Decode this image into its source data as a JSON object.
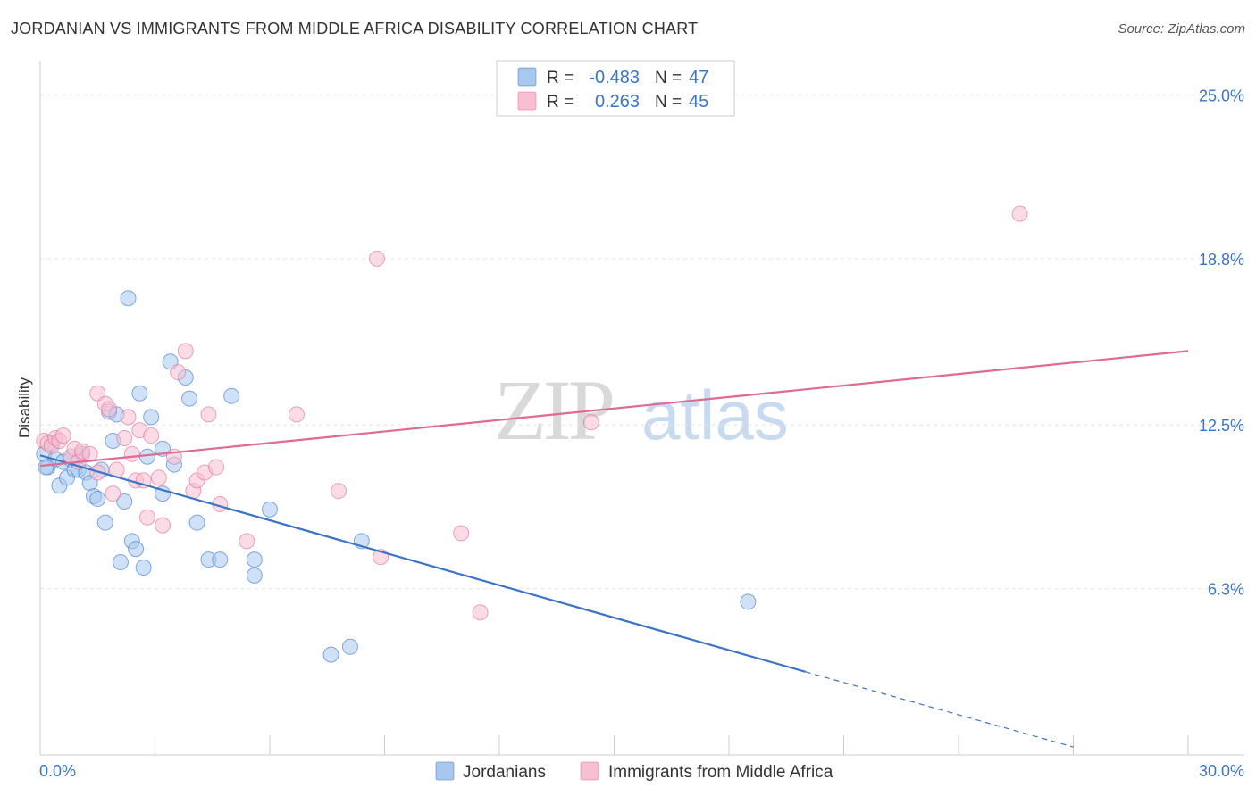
{
  "chart_data": {
    "type": "scatter",
    "title": "JORDANIAN VS IMMIGRANTS FROM MIDDLE AFRICA DISABILITY CORRELATION CHART",
    "source": "Source: ZipAtlas.com",
    "xlabel": "",
    "ylabel": "Disability",
    "xlim": [
      0,
      30
    ],
    "ylim": [
      0,
      26.3
    ],
    "x_tick_labels": [
      "0.0%",
      "30.0%"
    ],
    "y_ticks": [
      6.3,
      12.5,
      18.8,
      25.0
    ],
    "y_tick_labels": [
      "6.3%",
      "12.5%",
      "18.8%",
      "25.0%"
    ],
    "grid": true,
    "legend_position": "top-center",
    "watermark": "ZIPatlas",
    "series": [
      {
        "name": "Jordanians",
        "color": "#3b74c4",
        "fill": "#a8c8f0",
        "legend_r_label": "R =",
        "legend_r_value": "-0.483",
        "legend_n_label": "N =",
        "legend_n_value": "47",
        "trend": {
          "x0": 0.0,
          "y0": 11.35,
          "x1": 20.0,
          "y1": 3.15,
          "dash_x1": 27.0,
          "dash_y1": 0.3
        },
        "points": [
          [
            0.1,
            11.4
          ],
          [
            0.2,
            10.9
          ],
          [
            0.3,
            11.8
          ],
          [
            0.4,
            11.2
          ],
          [
            0.5,
            10.2
          ],
          [
            0.6,
            11.1
          ],
          [
            0.7,
            10.5
          ],
          [
            0.8,
            11.2
          ],
          [
            0.9,
            10.8
          ],
          [
            1.0,
            10.8
          ],
          [
            1.1,
            11.4
          ],
          [
            1.2,
            10.7
          ],
          [
            1.3,
            10.3
          ],
          [
            1.4,
            9.8
          ],
          [
            1.5,
            9.7
          ],
          [
            1.6,
            10.8
          ],
          [
            1.7,
            8.8
          ],
          [
            1.8,
            13.0
          ],
          [
            1.9,
            11.9
          ],
          [
            2.0,
            12.9
          ],
          [
            2.1,
            7.3
          ],
          [
            2.2,
            9.6
          ],
          [
            2.3,
            17.3
          ],
          [
            2.4,
            8.1
          ],
          [
            2.5,
            7.8
          ],
          [
            2.6,
            13.7
          ],
          [
            2.7,
            7.1
          ],
          [
            2.8,
            11.3
          ],
          [
            2.9,
            12.8
          ],
          [
            3.2,
            11.6
          ],
          [
            3.2,
            9.9
          ],
          [
            3.4,
            14.9
          ],
          [
            3.5,
            11.0
          ],
          [
            3.8,
            14.3
          ],
          [
            3.9,
            13.5
          ],
          [
            4.1,
            8.8
          ],
          [
            4.4,
            7.4
          ],
          [
            4.7,
            7.4
          ],
          [
            5.0,
            13.6
          ],
          [
            5.6,
            6.8
          ],
          [
            5.6,
            7.4
          ],
          [
            6.0,
            9.3
          ],
          [
            7.6,
            3.8
          ],
          [
            8.1,
            4.1
          ],
          [
            8.4,
            8.1
          ],
          [
            18.5,
            5.8
          ],
          [
            0.15,
            10.9
          ]
        ]
      },
      {
        "name": "Immigrants from Middle Africa",
        "color": "#e06a93",
        "fill": "#f7bfd1",
        "legend_r_label": "R =",
        "legend_r_value": "0.263",
        "legend_n_label": "N =",
        "legend_n_value": "45",
        "trend": {
          "x0": 0.0,
          "y0": 10.95,
          "x1": 30.0,
          "y1": 15.3
        },
        "points": [
          [
            0.1,
            11.9
          ],
          [
            0.2,
            11.8
          ],
          [
            0.3,
            11.7
          ],
          [
            0.4,
            12.0
          ],
          [
            0.5,
            11.9
          ],
          [
            0.6,
            12.1
          ],
          [
            0.8,
            11.3
          ],
          [
            0.9,
            11.6
          ],
          [
            1.0,
            11.1
          ],
          [
            1.1,
            11.5
          ],
          [
            1.3,
            11.4
          ],
          [
            1.5,
            10.7
          ],
          [
            1.5,
            13.7
          ],
          [
            1.7,
            13.3
          ],
          [
            1.8,
            13.1
          ],
          [
            1.9,
            9.9
          ],
          [
            2.0,
            10.8
          ],
          [
            2.2,
            12.0
          ],
          [
            2.3,
            12.8
          ],
          [
            2.4,
            11.4
          ],
          [
            2.5,
            10.4
          ],
          [
            2.6,
            12.3
          ],
          [
            2.7,
            10.4
          ],
          [
            2.8,
            9.0
          ],
          [
            2.9,
            12.1
          ],
          [
            3.1,
            10.5
          ],
          [
            3.2,
            8.7
          ],
          [
            3.5,
            11.3
          ],
          [
            3.6,
            14.5
          ],
          [
            3.8,
            15.3
          ],
          [
            4.0,
            10.0
          ],
          [
            4.1,
            10.4
          ],
          [
            4.3,
            10.7
          ],
          [
            4.4,
            12.9
          ],
          [
            4.6,
            10.9
          ],
          [
            4.7,
            9.5
          ],
          [
            5.4,
            8.1
          ],
          [
            6.7,
            12.9
          ],
          [
            7.8,
            10.0
          ],
          [
            8.8,
            18.8
          ],
          [
            8.9,
            7.5
          ],
          [
            11.0,
            8.4
          ],
          [
            11.5,
            5.4
          ],
          [
            14.4,
            12.6
          ],
          [
            25.6,
            20.5
          ]
        ]
      }
    ]
  }
}
